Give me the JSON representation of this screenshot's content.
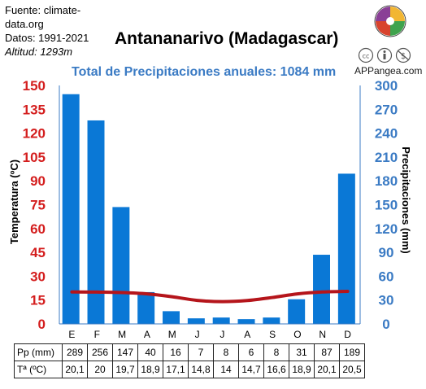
{
  "source": {
    "line1": "Fuente: climate-",
    "line2": "data.org",
    "line3": "Datos: 1991-2021",
    "altitude": "Altitud: 1293m"
  },
  "title": "Antananarivo (Madagascar)",
  "subtitle": "Total de Precipitaciones anuales: 1084 mm",
  "brand": "APPangea.com",
  "colors": {
    "bars": "#0a78d6",
    "temp_line": "#b5151b",
    "left_axis": "#d41e1e",
    "right_axis": "#3b7bc4"
  },
  "icons": [
    "puzzle-logo-icon",
    "creative-commons-icon",
    "attribution-icon",
    "noncommercial-icon"
  ],
  "chart_data": {
    "type": "bar+line",
    "categories": [
      "E",
      "F",
      "M",
      "A",
      "M",
      "J",
      "J",
      "A",
      "S",
      "O",
      "N",
      "D"
    ],
    "precipitation": {
      "values": [
        289,
        256,
        147,
        40,
        16,
        7,
        8,
        6,
        8,
        31,
        87,
        189
      ],
      "axis": "right",
      "ylim": [
        0,
        300
      ],
      "ticks": [
        "0",
        "30",
        "60",
        "90",
        "120",
        "150",
        "180",
        "210",
        "240",
        "270",
        "300"
      ],
      "ylabel": "Precipitaciones (mm)"
    },
    "temperature": {
      "values": [
        20.1,
        20,
        19.7,
        18.9,
        17.1,
        14.8,
        14,
        14.7,
        16.6,
        18.9,
        20.1,
        20.5
      ],
      "axis": "left",
      "ylim": [
        0,
        150
      ],
      "ticks": [
        "0",
        "15",
        "30",
        "45",
        "60",
        "75",
        "90",
        "105",
        "120",
        "135",
        "150"
      ],
      "ylabel": "Temperatura (ºC)"
    },
    "grid": false
  },
  "table": {
    "pp_label": "Pp (mm)",
    "pp": [
      "289",
      "256",
      "147",
      "40",
      "16",
      "7",
      "8",
      "6",
      "8",
      "31",
      "87",
      "189"
    ],
    "t_label": "Tª (ºC)",
    "t": [
      "20,1",
      "20",
      "19,7",
      "18,9",
      "17,1",
      "14,8",
      "14",
      "14,7",
      "16,6",
      "18,9",
      "20,1",
      "20,5"
    ]
  }
}
